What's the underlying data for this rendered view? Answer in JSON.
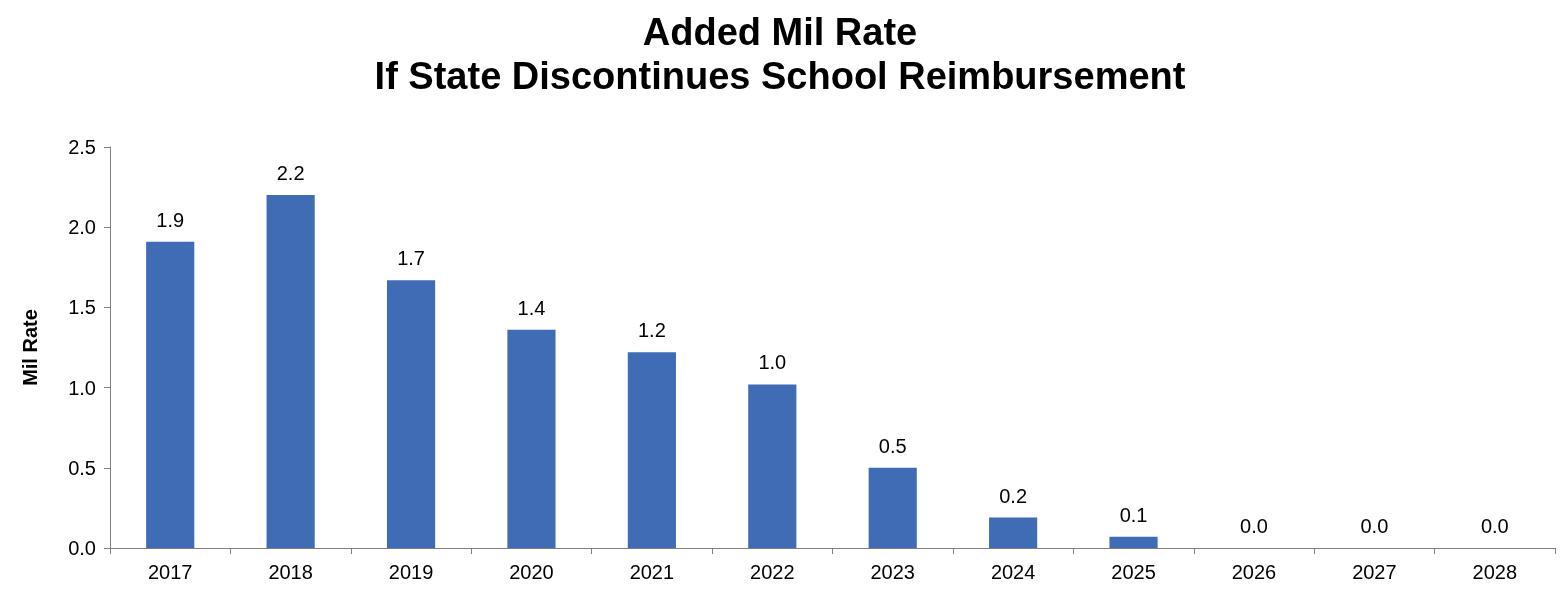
{
  "chart_data": {
    "type": "bar",
    "title": "Added Mil Rate",
    "subtitle": "If State Discontinues School Reimbursement",
    "ylabel": "Mil Rate",
    "categories": [
      "2017",
      "2018",
      "2019",
      "2020",
      "2021",
      "2022",
      "2023",
      "2024",
      "2025",
      "2026",
      "2027",
      "2028"
    ],
    "values": [
      1.91,
      2.2,
      1.67,
      1.36,
      1.22,
      1.02,
      0.5,
      0.19,
      0.07,
      0,
      0,
      0
    ],
    "value_labels": [
      "1.9",
      "2.2",
      "1.7",
      "1.4",
      "1.2",
      "1.0",
      "0.5",
      "0.2",
      "0.1",
      "0.0",
      "0.0",
      "0.0"
    ],
    "color": "#3f6cb4",
    "ylim": [
      0,
      2.5
    ],
    "yticks": [
      {
        "value": 0,
        "label": "0.0"
      },
      {
        "value": 0.5,
        "label": "0.5"
      },
      {
        "value": 1,
        "label": "1.0"
      },
      {
        "value": 1.5,
        "label": "1.5"
      },
      {
        "value": 2,
        "label": "2.0"
      },
      {
        "value": 2.5,
        "label": "2.5"
      }
    ],
    "grid": false
  }
}
